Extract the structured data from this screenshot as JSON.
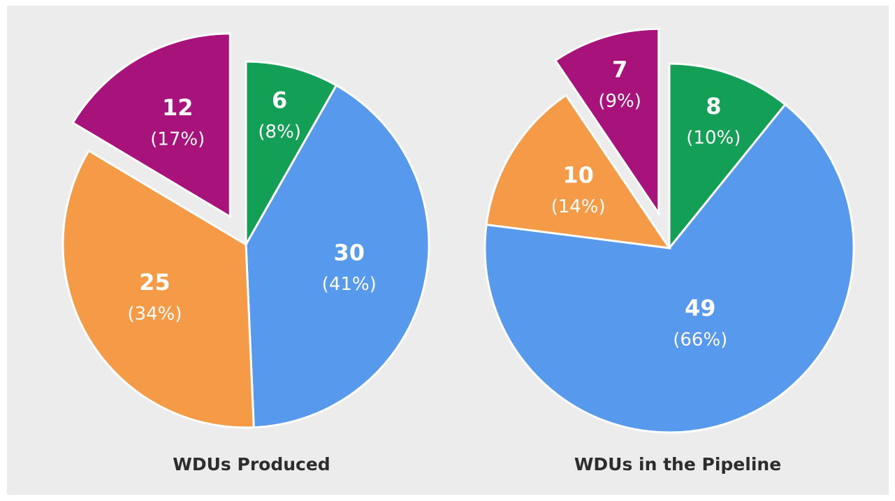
{
  "chart_data": [
    {
      "type": "pie",
      "title": "WDUs Produced",
      "values": [
        6,
        30,
        25,
        12
      ],
      "percentages": [
        8,
        41,
        34,
        17
      ],
      "percentage_labels": [
        "(8%)",
        "(41%)",
        "(34%)",
        "(17%)"
      ],
      "colors": [
        "#139f55",
        "#5799ec",
        "#f59a47",
        "#a8137b"
      ],
      "explode": [
        0,
        0,
        0,
        1
      ]
    },
    {
      "type": "pie",
      "title": "WDUs in the Pipeline",
      "values": [
        8,
        49,
        10,
        7
      ],
      "percentages": [
        10,
        66,
        14,
        9
      ],
      "percentage_labels": [
        "(10%)",
        "(66%)",
        "(14%)",
        "(9%)"
      ],
      "colors": [
        "#139f55",
        "#5799ec",
        "#f59a47",
        "#a8137b"
      ],
      "explode": [
        0,
        0,
        0,
        1
      ]
    }
  ]
}
